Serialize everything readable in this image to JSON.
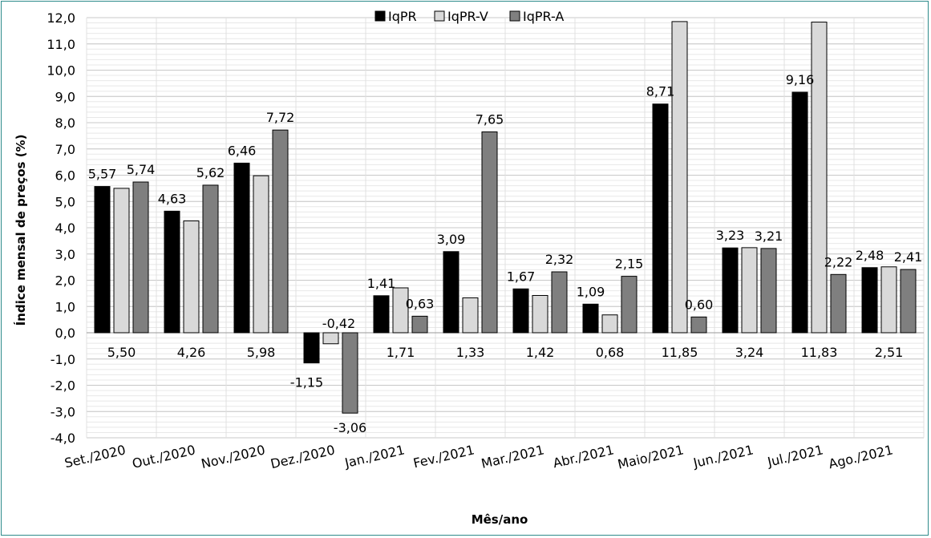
{
  "chart_data": {
    "type": "bar",
    "xlabel": "Mês/ano",
    "ylabel": "Índice mensal de preços (%)",
    "ylim": [
      -4,
      12
    ],
    "ytick_step": 1,
    "grid": true,
    "legend_position": "top",
    "categories": [
      "Set./2020",
      "Out./2020",
      "Nov./2020",
      "Dez./2020",
      "Jan./2021",
      "Fev./2021",
      "Mar./2021",
      "Abr./2021",
      "Maio/2021",
      "Jun./2021",
      "Jul./2021",
      "Ago./2021"
    ],
    "series": [
      {
        "name": "IqPR",
        "color": "#000000",
        "values": [
          5.57,
          4.63,
          6.46,
          -1.15,
          1.41,
          3.09,
          1.67,
          1.09,
          8.71,
          3.23,
          9.16,
          2.48
        ],
        "labels": [
          "5,57",
          "4,63",
          "6,46",
          "-1,15",
          "1,41",
          "3,09",
          "1,67",
          "1,09",
          "8,71",
          "3,23",
          "9,16",
          "2,48"
        ]
      },
      {
        "name": "IqPR-V",
        "color": "#d9d9d9",
        "values": [
          5.5,
          4.26,
          5.98,
          -0.42,
          1.71,
          1.33,
          1.42,
          0.68,
          11.85,
          3.24,
          11.83,
          2.51
        ],
        "labels": [
          "5,50",
          "4,26",
          "5,98",
          "-0,42",
          "1,71",
          "1,33",
          "1,42",
          "0,68",
          "11,85",
          "3,24",
          "11,83",
          "2,51"
        ]
      },
      {
        "name": "IqPR-A",
        "color": "#7f7f7f",
        "values": [
          5.74,
          5.62,
          7.72,
          -3.06,
          0.63,
          7.65,
          2.32,
          2.15,
          0.6,
          3.21,
          2.22,
          2.41
        ],
        "labels": [
          "5,74",
          "5,62",
          "7,72",
          "-3,06",
          "0,63",
          "7,65",
          "2,32",
          "2,15",
          "0,60",
          "3,21",
          "2,22",
          "2,41"
        ]
      }
    ]
  }
}
